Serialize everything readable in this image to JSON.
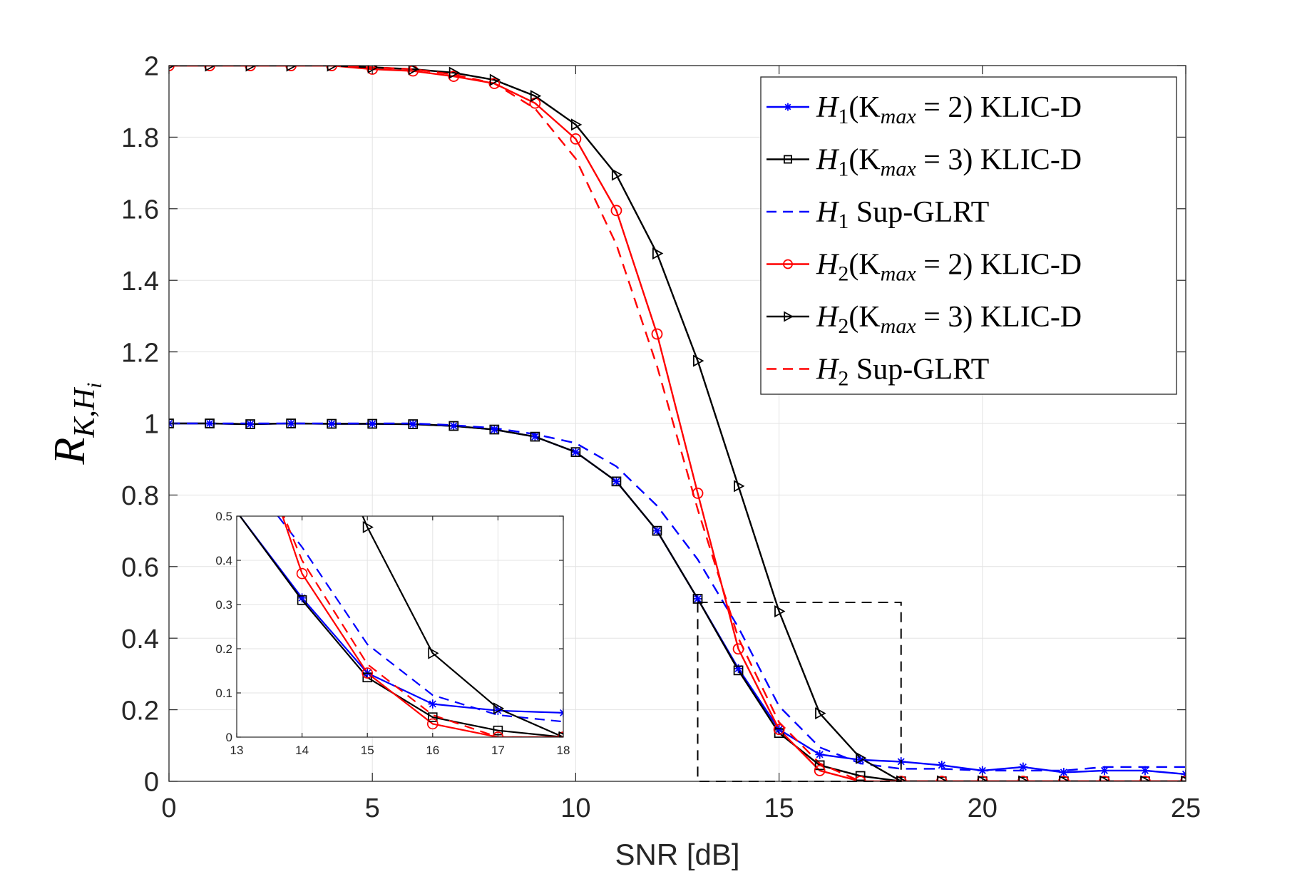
{
  "chart_data": [
    {
      "type": "line",
      "title": "",
      "xlabel": "SNR [dB]",
      "ylabel": "R",
      "ylabel_sub": "K,H",
      "ylabel_subsub": "i",
      "xlim": [
        0,
        25
      ],
      "ylim": [
        0,
        2
      ],
      "xticks": [
        "0",
        "5",
        "10",
        "15",
        "20",
        "25"
      ],
      "yticks": [
        "0",
        "0.2",
        "0.4",
        "0.6",
        "0.8",
        "1",
        "1.2",
        "1.4",
        "1.6",
        "1.8",
        "2"
      ],
      "grid": true,
      "legend_position": "top-right",
      "x": [
        0,
        1,
        2,
        3,
        4,
        5,
        6,
        7,
        8,
        9,
        10,
        11,
        12,
        13,
        14,
        15,
        16,
        17,
        18,
        19,
        20,
        21,
        22,
        23,
        24,
        25
      ],
      "series": [
        {
          "name": "H1(Kmax = 2) KLIC-D",
          "legend": {
            "main": "H",
            "sub": "1",
            "rest1": "(K",
            "sub2": "max",
            "rest2": " = 2) KLIC-D"
          },
          "color": "#0000ff",
          "dash": "solid",
          "marker": "star",
          "values": [
            1.0,
            1.0,
            0.998,
            1.0,
            0.999,
            0.999,
            0.998,
            0.993,
            0.983,
            0.963,
            0.92,
            0.838,
            0.7,
            0.51,
            0.315,
            0.145,
            0.075,
            0.06,
            0.055,
            0.045,
            0.03,
            0.04,
            0.025,
            0.03,
            0.03,
            0.02
          ]
        },
        {
          "name": "H1(Kmax = 3) KLIC-D",
          "legend": {
            "main": "H",
            "sub": "1",
            "rest1": "(K",
            "sub2": "max",
            "rest2": " = 3) KLIC-D"
          },
          "color": "#000000",
          "dash": "solid",
          "marker": "square",
          "values": [
            1.0,
            1.0,
            0.998,
            1.0,
            0.999,
            0.999,
            0.998,
            0.993,
            0.983,
            0.963,
            0.92,
            0.838,
            0.7,
            0.51,
            0.31,
            0.135,
            0.045,
            0.015,
            0.0,
            0.0,
            0.0,
            0.0,
            0.0,
            0.0,
            0.0,
            0.0
          ]
        },
        {
          "name": "H1 Sup-GLRT",
          "legend": {
            "main": "H",
            "sub": "1",
            "rest1": " Sup-GLRT",
            "sub2": "",
            "rest2": ""
          },
          "color": "#0000ff",
          "dash": "dashed",
          "marker": "none",
          "values": [
            1.0,
            1.0,
            1.0,
            1.0,
            1.0,
            1.0,
            1.0,
            0.995,
            0.987,
            0.97,
            0.945,
            0.88,
            0.77,
            0.62,
            0.43,
            0.21,
            0.095,
            0.05,
            0.035,
            0.035,
            0.03,
            0.03,
            0.03,
            0.04,
            0.04,
            0.04
          ]
        },
        {
          "name": "H2(Kmax = 2) KLIC-D",
          "legend": {
            "main": "H",
            "sub": "2",
            "rest1": "(K",
            "sub2": "max",
            "rest2": " = 2) KLIC-D"
          },
          "color": "#ff0000",
          "dash": "solid",
          "marker": "circle",
          "values": [
            2.0,
            2.0,
            2.0,
            2.0,
            2.0,
            1.99,
            1.985,
            1.97,
            1.95,
            1.895,
            1.795,
            1.595,
            1.25,
            0.805,
            0.37,
            0.145,
            0.03,
            0.0,
            0.0,
            0.0,
            0.0,
            0.0,
            0.0,
            0.0,
            0.0,
            0.0
          ]
        },
        {
          "name": "H2(Kmax = 3) KLIC-D",
          "legend": {
            "main": "H",
            "sub": "2",
            "rest1": "(K",
            "sub2": "max",
            "rest2": " = 3) KLIC-D"
          },
          "color": "#000000",
          "dash": "solid",
          "marker": "triangle-right",
          "values": [
            2.0,
            2.0,
            2.0,
            2.0,
            2.0,
            1.995,
            1.99,
            1.98,
            1.96,
            1.915,
            1.835,
            1.695,
            1.475,
            1.175,
            0.825,
            0.475,
            0.19,
            0.065,
            0.0,
            0.0,
            0.0,
            0.0,
            0.0,
            0.0,
            0.0,
            0.0
          ]
        },
        {
          "name": "H2 Sup-GLRT",
          "legend": {
            "main": "H",
            "sub": "2",
            "rest1": " Sup-GLRT",
            "sub2": "",
            "rest2": ""
          },
          "color": "#ff0000",
          "dash": "dashed",
          "marker": "none",
          "values": [
            2.0,
            2.0,
            2.0,
            2.0,
            2.0,
            1.995,
            1.99,
            1.975,
            1.95,
            1.88,
            1.74,
            1.5,
            1.16,
            0.76,
            0.4,
            0.165,
            0.05,
            0.0,
            0.0,
            0.0,
            0.0,
            0.0,
            0.0,
            0.0,
            0.0,
            0.0
          ]
        }
      ],
      "zoom_box": {
        "xlim": [
          13,
          18
        ],
        "ylim": [
          0,
          0.5
        ]
      }
    },
    {
      "type": "line",
      "title": "",
      "xlim": [
        13,
        18
      ],
      "ylim": [
        0,
        0.5
      ],
      "xticks": [
        "13",
        "14",
        "15",
        "16",
        "17",
        "18"
      ],
      "yticks": [
        "0",
        "0.1",
        "0.2",
        "0.3",
        "0.4",
        "0.5"
      ],
      "grid": true
    }
  ]
}
